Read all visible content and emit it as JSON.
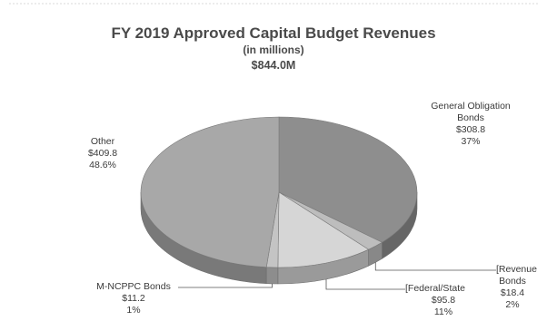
{
  "chart_data": {
    "type": "pie",
    "title": "FY 2019 Approved Capital Budget Revenues",
    "subtitle": "(in millions)",
    "total": "$844.0M",
    "categories": [
      "General Obligation Bonds",
      "Revenue Bonds",
      "Federal/State",
      "M-NCPPC Bonds",
      "Other"
    ],
    "values": [
      308.8,
      18.4,
      95.8,
      11.2,
      409.8
    ],
    "percents": [
      37,
      2,
      11,
      1,
      48.6
    ],
    "colors": [
      "#8e8e8e",
      "#bdbdbd",
      "#d6d6d6",
      "#c4c4c4",
      "#a8a8a8"
    ],
    "labels": [
      {
        "name": "General Obligation Bonds",
        "line1": "General Obligation",
        "line2": "Bonds",
        "amount": "$308.8",
        "percent": "37%"
      },
      {
        "name": "Revenue Bonds",
        "line1": "[Revenue",
        "line2": "Bonds",
        "amount": "$18.4",
        "percent": "2%"
      },
      {
        "name": "Federal/State",
        "line1": "[Federal/State",
        "line2": "",
        "amount": "$95.8",
        "percent": "11%"
      },
      {
        "name": "M-NCPPC Bonds",
        "line1": "M-NCPPC Bonds",
        "line2": "",
        "amount": "$11.2",
        "percent": "1%"
      },
      {
        "name": "Other",
        "line1": "Other",
        "line2": "",
        "amount": "$409.8",
        "percent": "48.6%"
      }
    ]
  }
}
